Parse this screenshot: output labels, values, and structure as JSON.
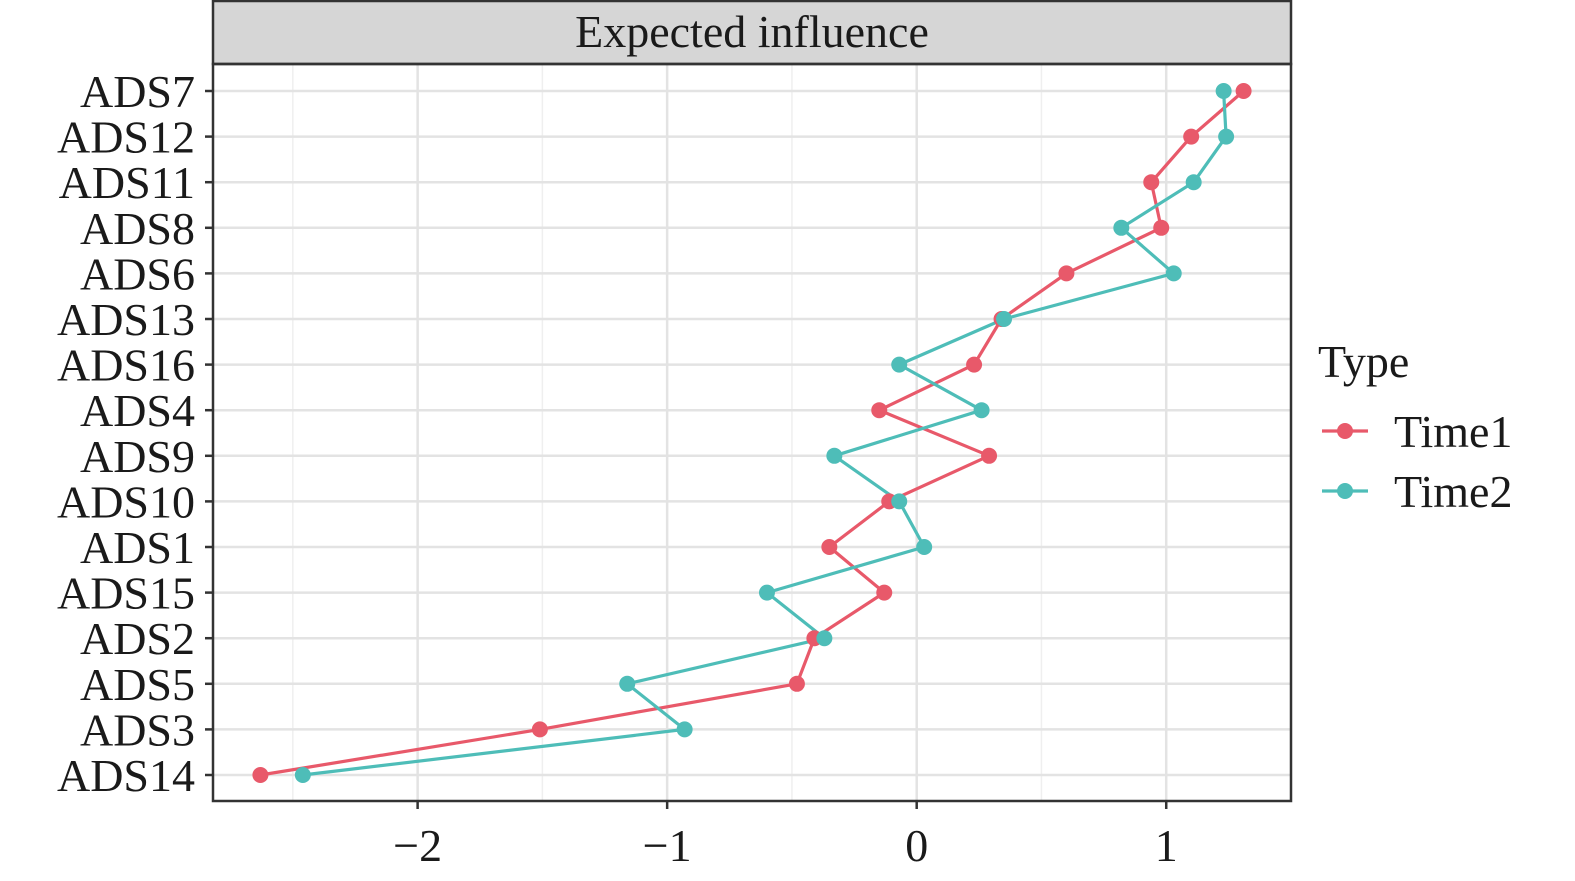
{
  "chart_data": {
    "type": "line",
    "title": "Expected influence",
    "xlabel": "",
    "ylabel": "",
    "xlim": [
      -2.82,
      1.5
    ],
    "x_ticks": [
      -2,
      -1,
      0,
      1
    ],
    "x_tick_labels": [
      "−2",
      "−1",
      "0",
      "1"
    ],
    "grid": true,
    "legend_position": "right",
    "categories": [
      "ADS7",
      "ADS12",
      "ADS11",
      "ADS8",
      "ADS6",
      "ADS13",
      "ADS16",
      "ADS4",
      "ADS9",
      "ADS10",
      "ADS1",
      "ADS15",
      "ADS2",
      "ADS5",
      "ADS3",
      "ADS14"
    ],
    "series": [
      {
        "name": "Time1",
        "color": "#E8596A",
        "values": [
          1.31,
          1.1,
          0.94,
          0.98,
          0.6,
          0.34,
          0.23,
          -0.15,
          0.29,
          -0.11,
          -0.35,
          -0.13,
          -0.41,
          -0.48,
          -1.51,
          -2.63
        ]
      },
      {
        "name": "Time2",
        "color": "#4EBDB8",
        "values": [
          1.23,
          1.24,
          1.11,
          0.82,
          1.03,
          0.35,
          -0.07,
          0.26,
          -0.33,
          -0.07,
          0.03,
          -0.6,
          -0.37,
          -1.16,
          -0.93,
          -2.46
        ]
      }
    ],
    "legend": {
      "title": "Type",
      "position": "right"
    }
  }
}
